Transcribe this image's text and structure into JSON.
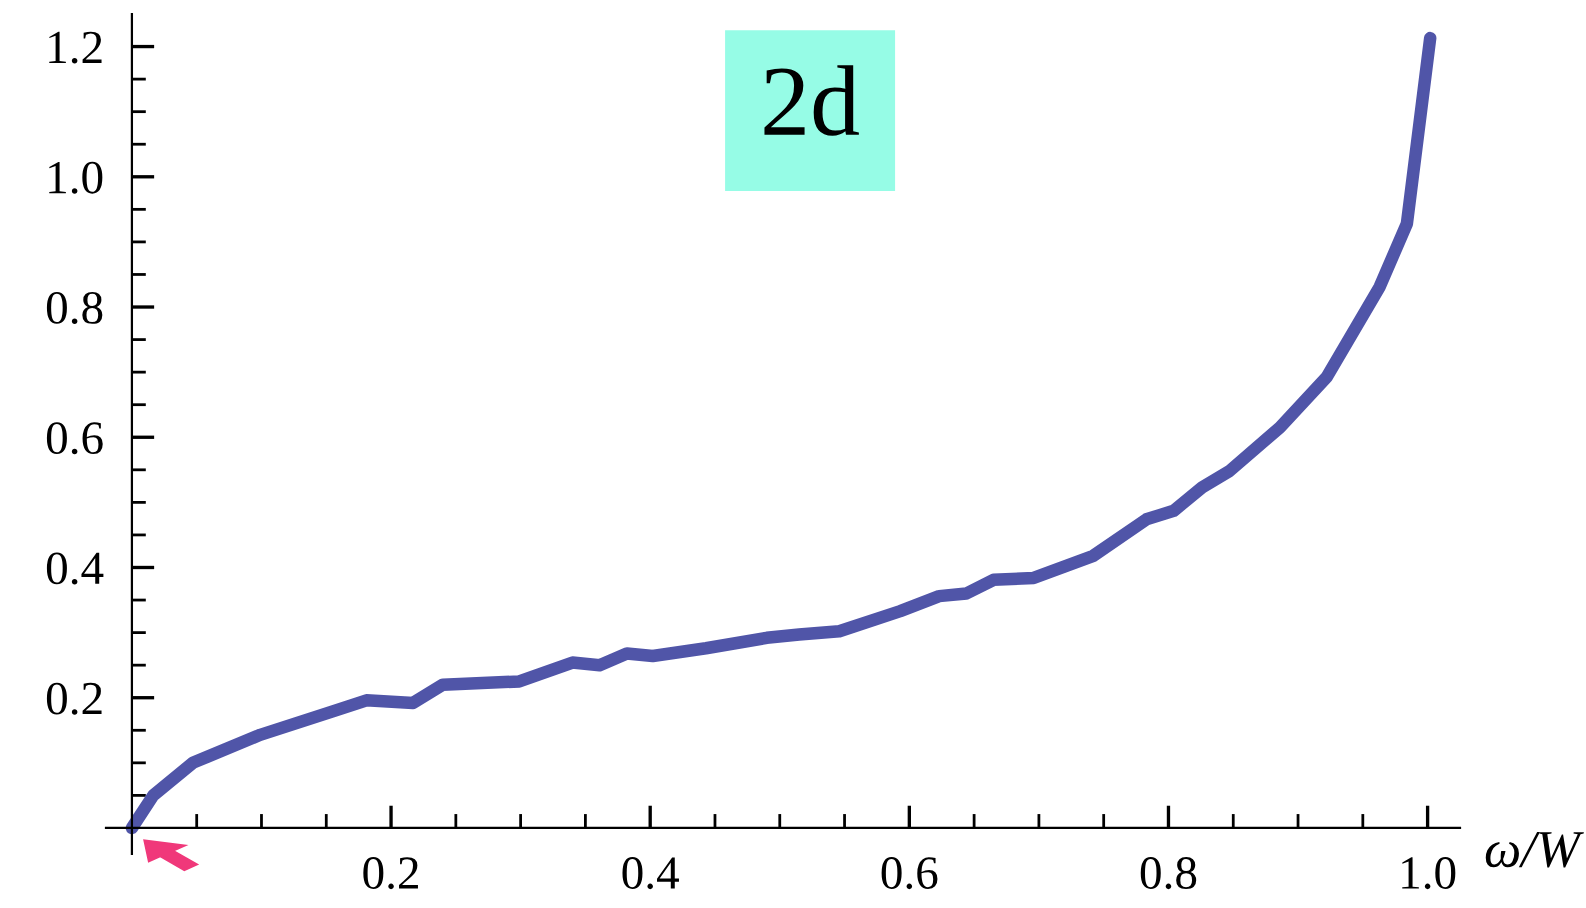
{
  "chart_data": {
    "type": "line",
    "xlabel": "ω/W",
    "x": [
      0,
      0.0165,
      0.047,
      0.099,
      0.155,
      0.181,
      0.217,
      0.24,
      0.299,
      0.34,
      0.361,
      0.382,
      0.402,
      0.443,
      0.49,
      0.515,
      0.546,
      0.593,
      0.623,
      0.644,
      0.665,
      0.696,
      0.742,
      0.783,
      0.804,
      0.826,
      0.847,
      0.886,
      0.922,
      0.963,
      0.984,
      1.002
    ],
    "series": [
      {
        "color": "#5055a8",
        "values": [
          0,
          0.05,
          0.1,
          0.143,
          0.179,
          0.196,
          0.192,
          0.22,
          0.225,
          0.254,
          0.25,
          0.268,
          0.264,
          0.276,
          0.292,
          0.297,
          0.302,
          0.333,
          0.356,
          0.36,
          0.381,
          0.384,
          0.418,
          0.474,
          0.487,
          0.523,
          0.548,
          0.615,
          0.692,
          0.831,
          0.928,
          1.213
        ]
      }
    ],
    "xlim": [
      -0.02,
      1.025
    ],
    "ylim": [
      -0.04,
      1.25
    ],
    "xticks": [
      {
        "value": 0.05,
        "label": null
      },
      {
        "value": 0.1,
        "label": null
      },
      {
        "value": 0.15,
        "label": null
      },
      0.2,
      {
        "value": 0.25,
        "label": null
      },
      {
        "value": 0.3,
        "label": null
      },
      {
        "value": 0.35,
        "label": null
      },
      0.4,
      {
        "value": 0.45,
        "label": null
      },
      {
        "value": 0.5,
        "label": null
      },
      {
        "value": 0.55,
        "label": null
      },
      0.6,
      {
        "value": 0.65,
        "label": null
      },
      {
        "value": 0.7,
        "label": null
      },
      {
        "value": 0.75,
        "label": null
      },
      0.8,
      {
        "value": 0.85,
        "label": null
      },
      {
        "value": 0.9,
        "label": null
      },
      {
        "value": 0.95,
        "label": null
      },
      {
        "value": 1.0,
        "label": "1.0"
      }
    ],
    "yticks": [
      {
        "value": 0.05,
        "label": null
      },
      {
        "value": 0.1,
        "label": null
      },
      {
        "value": 0.15,
        "label": null
      },
      0.2,
      {
        "value": 0.25,
        "label": null
      },
      {
        "value": 0.3,
        "label": null
      },
      {
        "value": 0.35,
        "label": null
      },
      0.4,
      {
        "value": 0.45,
        "label": null
      },
      {
        "value": 0.5,
        "label": null
      },
      {
        "value": 0.55,
        "label": null
      },
      0.6,
      {
        "value": 0.65,
        "label": null
      },
      {
        "value": 0.7,
        "label": null
      },
      {
        "value": 0.75,
        "label": null
      },
      0.8,
      {
        "value": 0.85,
        "label": null
      },
      {
        "value": 0.9,
        "label": null
      },
      {
        "value": 0.95,
        "label": null
      },
      {
        "value": 1.0,
        "label": "1.0"
      },
      {
        "value": 1.05,
        "label": null
      },
      {
        "value": 1.1,
        "label": null
      },
      {
        "value": 1.15,
        "label": null
      },
      1.2
    ],
    "annotations": [
      "2d"
    ],
    "grid": false,
    "legend": false,
    "marker": "none",
    "line_style": "solid"
  }
}
